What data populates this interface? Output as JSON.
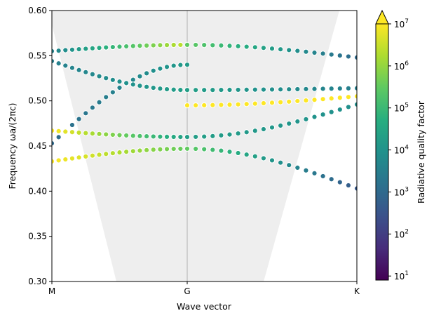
{
  "chart_data": {
    "type": "scatter",
    "title": "",
    "xlabel": "Wave vector",
    "ylabel": "Frequency ωa/(2πc)",
    "xtick_labels": [
      "M",
      "G",
      "K"
    ],
    "xlim": [
      0,
      1
    ],
    "ylim": [
      0.3,
      0.6
    ],
    "yticks": [
      0.3,
      0.35,
      0.4,
      0.45,
      0.5,
      0.55,
      0.6
    ],
    "ytick_labels": [
      "0.30",
      "0.35",
      "0.40",
      "0.45",
      "0.50",
      "0.55",
      "0.60"
    ],
    "grid": false,
    "vertical_line_at": "G",
    "light_cone_fill": "#eeeeee",
    "marker_edge_color": "#ffffff",
    "colorbar": {
      "label": "Radiative quality factor",
      "scale": "log",
      "range": [
        8,
        10000000
      ],
      "colormap": "viridis",
      "extend": "max",
      "tick_labels": [
        "10^1",
        "10^2",
        "10^3",
        "10^4",
        "10^5",
        "10^6",
        "10^7"
      ],
      "tick_values": [
        10,
        100,
        1000,
        10000,
        100000,
        1000000,
        10000000
      ]
    },
    "bands": [
      {
        "segment": "M-G",
        "start": 0.453,
        "end": 0.54,
        "logQ_start": 3.0,
        "logQ_end": 4.2
      },
      {
        "segment": "M-G",
        "start": 0.544,
        "end": 0.512,
        "logQ_start": 3.5,
        "logQ_end": 4.3
      },
      {
        "segment": "M-G",
        "start": 0.555,
        "end": 0.562,
        "logQ_start": 3.6,
        "logQ_end": 6.5
      },
      {
        "segment": "M-G",
        "start": 0.467,
        "end": 0.46,
        "logQ_start": 7.0,
        "logQ_end": 4.3
      },
      {
        "segment": "M-G",
        "start": 0.433,
        "end": 0.447,
        "logQ_start": 7.0,
        "logQ_end": 5.5
      },
      {
        "segment": "G-K",
        "start": 0.562,
        "end": 0.548,
        "logQ_start": 5.5,
        "logQ_end": 3.0
      },
      {
        "segment": "G-K",
        "start": 0.512,
        "end": 0.514,
        "logQ_start": 4.3,
        "logQ_end": 3.5
      },
      {
        "segment": "G-K",
        "start": 0.46,
        "end": 0.496,
        "logQ_start": 4.3,
        "logQ_end": 3.9
      },
      {
        "segment": "G-K",
        "start": 0.447,
        "end": 0.403,
        "logQ_start": 5.5,
        "logQ_end": 2.6
      },
      {
        "segment": "G-K",
        "start": 0.495,
        "end": 0.505,
        "logQ_start": 7.0,
        "logQ_end": 7.0
      }
    ]
  }
}
